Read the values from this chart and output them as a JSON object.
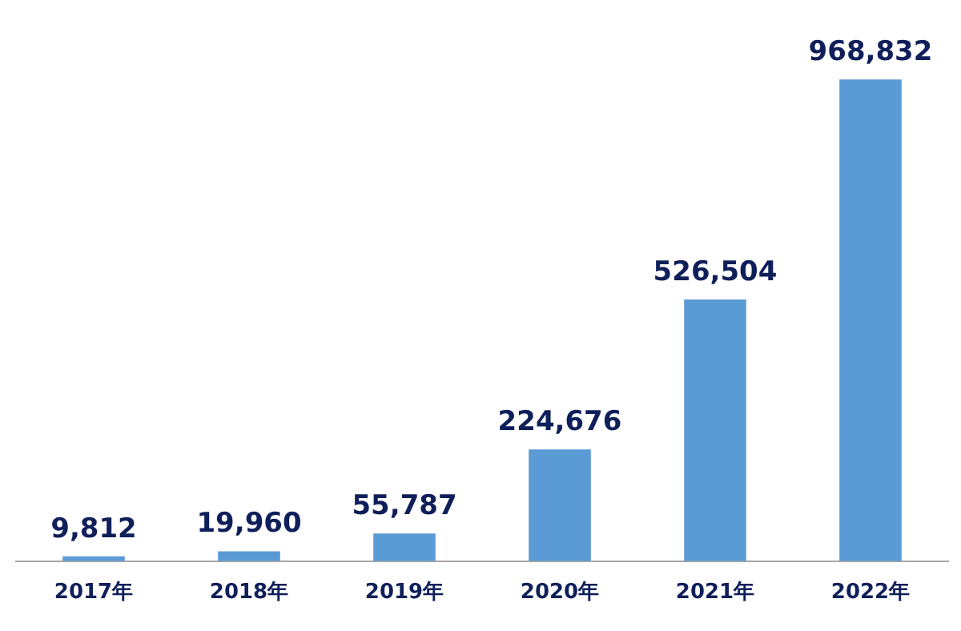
{
  "chart_data": {
    "type": "bar",
    "categories": [
      "2017年",
      "2018年",
      "2019年",
      "2020年",
      "2021年",
      "2022年"
    ],
    "values": [
      9812,
      19960,
      55787,
      224676,
      526504,
      968832
    ],
    "value_labels": [
      "9,812",
      "19,960",
      "55,787",
      "224,676",
      "526,504",
      "968,832"
    ],
    "color": "#5b9bd5",
    "grid": false,
    "legend": false
  }
}
